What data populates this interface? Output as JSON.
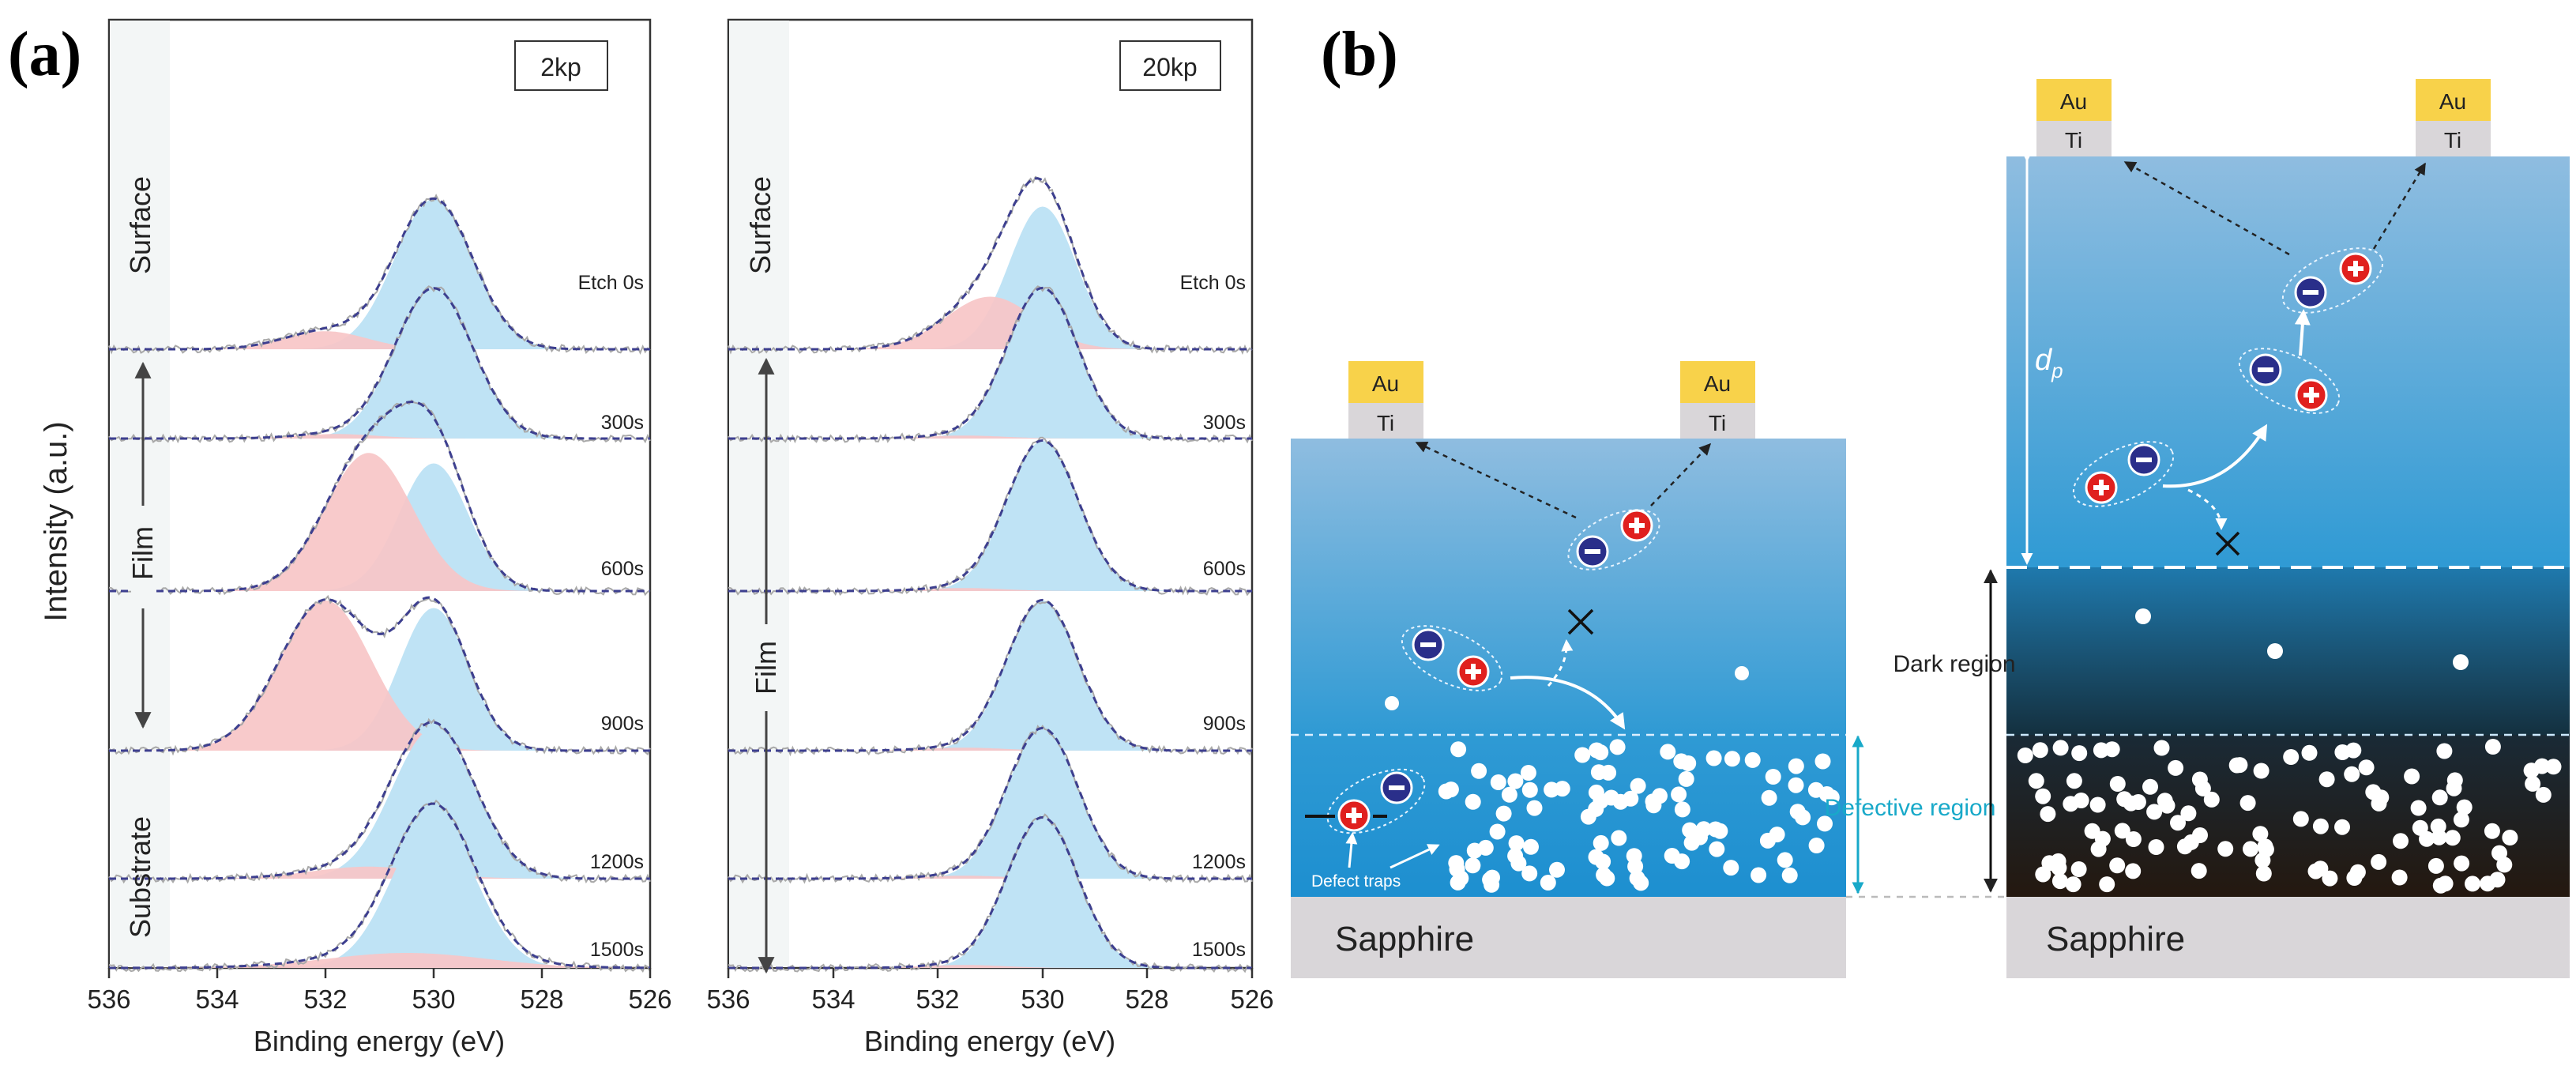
{
  "panel_a": {
    "letter": "(a)",
    "y_axis_label": "Intensity (a.u.)",
    "plots": [
      {
        "id": "2kp",
        "sample_label": "2kp",
        "side_labels": [
          "Surface",
          "Film",
          "Substrate"
        ],
        "etch_labels": [
          "Etch 0s",
          "300s",
          "600s",
          "900s",
          "1200s",
          "1500s"
        ]
      },
      {
        "id": "20kp",
        "sample_label": "20kp",
        "side_labels": [
          "Surface",
          "Film"
        ],
        "etch_labels": [
          "Etch 0s",
          "300s",
          "600s",
          "900s",
          "1200s",
          "1500s"
        ]
      }
    ],
    "x_ticks": [
      "536",
      "534",
      "532",
      "530",
      "528",
      "526"
    ],
    "x_axis_label": "Binding energy (eV)"
  },
  "chart_data": [
    {
      "type": "area",
      "title": "2kp",
      "xlabel": "Binding energy (eV)",
      "ylabel": "Intensity (a.u.)",
      "xlim": [
        536,
        526
      ],
      "component_colors": {
        "lattice_O": "#bfe3f5",
        "defect_O": "#f7c5c7",
        "envelope": "#3d3f8f"
      },
      "series": [
        {
          "name": "Etch 0s",
          "lattice_O": {
            "center": 530.0,
            "fwhm": 1.7,
            "height": 1.0
          },
          "defect_O": {
            "center": 532.0,
            "fwhm": 1.8,
            "height": 0.12
          }
        },
        {
          "name": "300s",
          "lattice_O": {
            "center": 530.0,
            "fwhm": 1.7,
            "height": 1.0
          },
          "defect_O": {
            "center": 531.8,
            "fwhm": 1.8,
            "height": 0.03
          }
        },
        {
          "name": "600s",
          "lattice_O": {
            "center": 530.0,
            "fwhm": 1.5,
            "height": 0.85
          },
          "defect_O": {
            "center": 531.2,
            "fwhm": 1.9,
            "height": 0.92
          }
        },
        {
          "name": "900s",
          "lattice_O": {
            "center": 530.0,
            "fwhm": 1.5,
            "height": 0.95
          },
          "defect_O": {
            "center": 532.0,
            "fwhm": 2.0,
            "height": 1.0
          }
        },
        {
          "name": "1200s",
          "lattice_O": {
            "center": 530.0,
            "fwhm": 1.8,
            "height": 1.0
          },
          "defect_O": {
            "center": 531.2,
            "fwhm": 2.5,
            "height": 0.08
          }
        },
        {
          "name": "1500s",
          "lattice_O": {
            "center": 530.0,
            "fwhm": 1.8,
            "height": 1.0
          },
          "defect_O": {
            "center": 530.5,
            "fwhm": 3.5,
            "height": 0.1
          }
        }
      ]
    },
    {
      "type": "area",
      "title": "20kp",
      "xlabel": "Binding energy (eV)",
      "ylabel": "Intensity (a.u.)",
      "xlim": [
        536,
        526
      ],
      "component_colors": {
        "lattice_O": "#bfe3f5",
        "defect_O": "#f7c5c7",
        "envelope": "#3d3f8f"
      },
      "series": [
        {
          "name": "Etch 0s",
          "lattice_O": {
            "center": 530.0,
            "fwhm": 1.5,
            "height": 0.95
          },
          "defect_O": {
            "center": 531.0,
            "fwhm": 2.0,
            "height": 0.35
          }
        },
        {
          "name": "300s",
          "lattice_O": {
            "center": 530.0,
            "fwhm": 1.6,
            "height": 1.0
          },
          "defect_O": {
            "center": 531.5,
            "fwhm": 1.8,
            "height": 0.02
          }
        },
        {
          "name": "600s",
          "lattice_O": {
            "center": 530.0,
            "fwhm": 1.6,
            "height": 1.0
          },
          "defect_O": {
            "center": 531.5,
            "fwhm": 1.8,
            "height": 0.02
          }
        },
        {
          "name": "900s",
          "lattice_O": {
            "center": 530.0,
            "fwhm": 1.6,
            "height": 1.0
          },
          "defect_O": {
            "center": 531.5,
            "fwhm": 1.8,
            "height": 0.02
          }
        },
        {
          "name": "1200s",
          "lattice_O": {
            "center": 530.0,
            "fwhm": 1.6,
            "height": 1.0
          },
          "defect_O": {
            "center": 531.5,
            "fwhm": 1.8,
            "height": 0.02
          }
        },
        {
          "name": "1500s",
          "lattice_O": {
            "center": 530.0,
            "fwhm": 1.6,
            "height": 1.0
          },
          "defect_O": {
            "center": 531.5,
            "fwhm": 1.8,
            "height": 0.02
          }
        }
      ]
    }
  ],
  "panel_b": {
    "letter": "(b)",
    "left_device": {
      "electrode_top": "Au",
      "electrode_bottom": "Ti",
      "substrate": "Sapphire",
      "defect_traps_label": "Defect traps",
      "defective_region_label": "Defective region"
    },
    "right_device": {
      "electrode_top": "Au",
      "electrode_bottom": "Ti",
      "substrate": "Sapphire",
      "depth_label": "d",
      "depth_subscript": "p",
      "dark_region_label": "Dark region"
    },
    "colors": {
      "gold": "#f8d24a",
      "titanium": "#d9d6d9",
      "electron": "#2a2f8a",
      "hole": "#e0201e",
      "cyan": "#18a9c9"
    }
  }
}
